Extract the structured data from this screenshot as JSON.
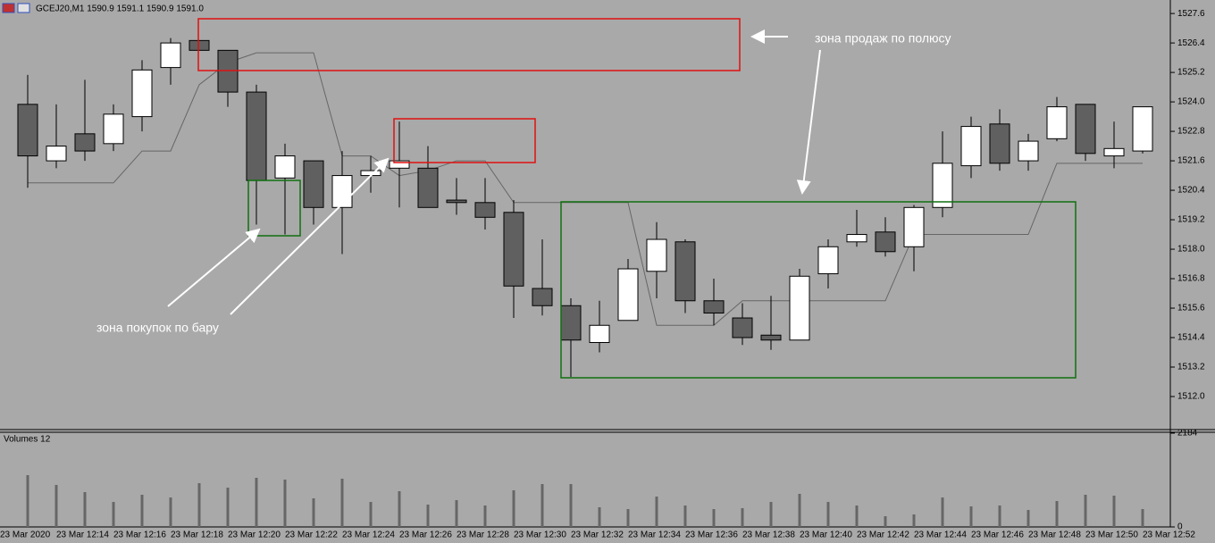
{
  "chart_data": [
    {
      "type": "candlestick",
      "title": "GCEJ20,M1  1590.9 1591.1 1590.9 1591.0",
      "date_label": "23 Mar 2020",
      "categories": [
        null,
        "23 Mar 12:14",
        null,
        "23 Mar 12:16",
        null,
        "23 Mar 12:18",
        null,
        "23 Mar 12:20",
        null,
        "23 Mar 12:22",
        null,
        "23 Mar 12:24",
        null,
        "23 Mar 12:26",
        null,
        "23 Mar 12:28",
        null,
        "23 Mar 12:30",
        null,
        "23 Mar 12:32",
        null,
        "23 Mar 12:34",
        null,
        "23 Mar 12:36",
        null,
        "23 Mar 12:38",
        null,
        "23 Mar 12:40",
        null,
        "23 Mar 12:42",
        null,
        "23 Mar 12:44",
        null,
        "23 Mar 12:46",
        null,
        "23 Mar 12:48",
        null,
        "23 Mar 12:50",
        null,
        "23 Mar 12:52"
      ],
      "ohlc": [
        [
          1523.9,
          1525.1,
          1520.5,
          1521.8
        ],
        [
          1521.6,
          1523.9,
          1521.3,
          1522.2
        ],
        [
          1522.7,
          1524.9,
          1521.6,
          1522.0
        ],
        [
          1522.3,
          1523.9,
          1522.0,
          1523.5
        ],
        [
          1523.4,
          1525.7,
          1522.8,
          1525.3
        ],
        [
          1525.4,
          1526.6,
          1524.7,
          1526.4
        ],
        [
          1526.5,
          1526.5,
          1526.1,
          1526.1
        ],
        [
          1526.1,
          1526.1,
          1523.8,
          1524.4
        ],
        [
          1524.4,
          1524.7,
          1519.0,
          1520.8
        ],
        [
          1520.9,
          1522.3,
          1518.6,
          1521.8
        ],
        [
          1521.6,
          1521.6,
          1519.0,
          1519.7
        ],
        [
          1519.7,
          1522.0,
          1517.8,
          1521.0
        ],
        [
          1521.0,
          1521.8,
          1520.3,
          1521.2
        ],
        [
          1521.3,
          1523.2,
          1519.7,
          1521.6
        ],
        [
          1521.3,
          1522.2,
          1519.7,
          1519.7
        ],
        [
          1520.0,
          1520.9,
          1519.4,
          1519.9
        ],
        [
          1519.9,
          1520.9,
          1518.8,
          1519.3
        ],
        [
          1519.5,
          1520.0,
          1515.2,
          1516.5
        ],
        [
          1516.4,
          1518.4,
          1515.3,
          1515.7
        ],
        [
          1515.7,
          1516.0,
          1512.8,
          1514.3
        ],
        [
          1514.2,
          1515.9,
          1513.8,
          1514.9
        ],
        [
          1515.1,
          1517.6,
          1515.1,
          1517.2
        ],
        [
          1517.1,
          1519.1,
          1516.0,
          1518.4
        ],
        [
          1518.3,
          1518.4,
          1515.4,
          1515.9
        ],
        [
          1515.9,
          1516.8,
          1514.9,
          1515.4
        ],
        [
          1515.2,
          1515.8,
          1514.1,
          1514.4
        ],
        [
          1514.5,
          1516.1,
          1513.9,
          1514.3
        ],
        [
          1514.3,
          1517.2,
          1514.3,
          1516.9
        ],
        [
          1517.0,
          1518.4,
          1516.4,
          1518.1
        ],
        [
          1518.3,
          1519.6,
          1518.1,
          1518.6
        ],
        [
          1518.7,
          1519.3,
          1517.7,
          1517.9
        ],
        [
          1518.1,
          1519.8,
          1517.1,
          1519.7
        ],
        [
          1519.7,
          1522.8,
          1519.3,
          1521.5
        ],
        [
          1521.4,
          1523.4,
          1520.9,
          1523.0
        ],
        [
          1523.1,
          1523.7,
          1521.2,
          1521.5
        ],
        [
          1521.6,
          1522.7,
          1521.2,
          1522.4
        ],
        [
          1522.5,
          1524.2,
          1522.4,
          1523.8
        ],
        [
          1523.9,
          1523.9,
          1521.6,
          1521.9
        ],
        [
          1521.8,
          1523.2,
          1521.3,
          1522.1
        ],
        [
          1522.0,
          1523.8,
          1521.9,
          1523.8
        ]
      ],
      "levels": [
        1520.7,
        1520.7,
        1520.7,
        1520.7,
        1522.0,
        1522.0,
        1524.7,
        1525.6,
        1526.0,
        1526.0,
        1526.0,
        1521.8,
        1521.8,
        1521.0,
        1521.2,
        1521.6,
        1521.6,
        1519.9,
        1519.9,
        1519.9,
        1519.9,
        1519.9,
        1514.9,
        1514.9,
        1514.9,
        1515.9,
        1515.9,
        1515.9,
        1515.9,
        1515.9,
        1515.9,
        1518.6,
        1518.6,
        1518.6,
        1518.6,
        1518.6,
        1521.5,
        1521.5,
        1521.5,
        1521.5
      ],
      "levels_color": "#666666",
      "up_color": "#ffffff",
      "down_color": "#606060",
      "ylim": [
        1510.69,
        1528.15
      ],
      "yticks": [
        1527.6,
        1526.4,
        {
          "value": 1525.2,
          "label": "1525.2"
        },
        {
          "value": 1524,
          "label": "1524.0"
        },
        1522.8,
        1521.6,
        1520.4,
        1519.2,
        {
          "value": 1518,
          "label": "1518.0"
        },
        1516.8,
        1515.6,
        1514.4,
        1513.2,
        {
          "value": 1512,
          "label": "1512.0"
        }
      ],
      "annotations": [
        "зона продаж по полюсу",
        "зона покупок по бару"
      ]
    },
    {
      "type": "bar",
      "title": "Volumes 12",
      "values": [
        1206,
        978,
        811,
        582,
        749,
        686,
        1019,
        915,
        1144,
        1102,
        666,
        1123,
        582,
        832,
        520,
        624,
        499,
        853,
        998,
        998,
        458,
        416,
        707,
        499,
        416,
        437,
        582,
        770,
        582,
        499,
        250,
        291,
        686,
        478,
        499,
        395,
        603,
        749,
        728,
        416
      ],
      "color": "#666666",
      "ylim": [
        0,
        2184
      ],
      "yticks": [
        2184,
        0
      ]
    }
  ]
}
